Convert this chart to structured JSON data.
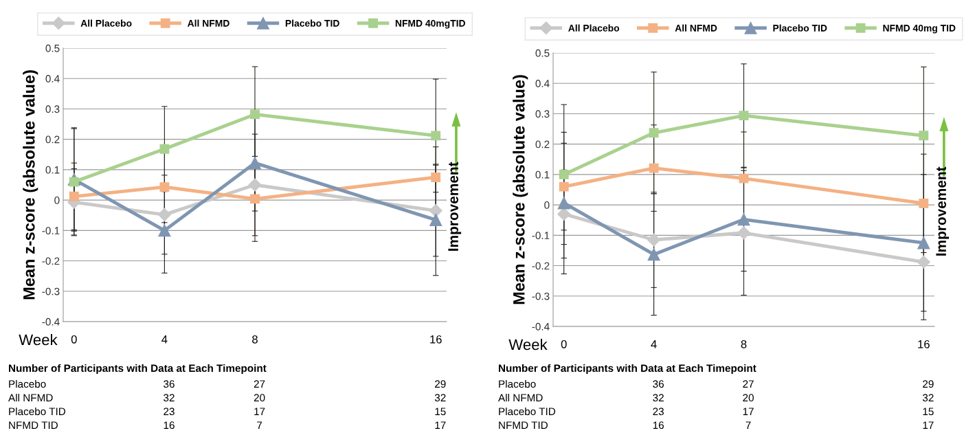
{
  "chart_data": [
    {
      "type": "line",
      "xlabel": "Week",
      "ylabel": "Mean z-score (absolute value)",
      "categories": [
        "0",
        "4",
        "8",
        null,
        "16"
      ],
      "ylim": [
        -0.4,
        0.5
      ],
      "yticks": [
        -0.4,
        -0.3,
        -0.2,
        -0.1,
        0,
        0.1,
        0.2,
        0.3,
        0.4,
        0.5
      ],
      "grid": "y",
      "legend": "top",
      "line_style": "solid",
      "series": [
        {
          "name": "All Placebo",
          "color": "#c9c9c9",
          "marker": "diamond",
          "values": [
            -0.007,
            -0.048,
            0.05,
            null,
            -0.035
          ],
          "errors": [
            0.11,
            0.13,
            0.167,
            null,
            0.15
          ]
        },
        {
          "name": "All NFMD",
          "color": "#f4b183",
          "marker": "square",
          "values": [
            0.012,
            0.043,
            0.004,
            null,
            0.075
          ],
          "errors": [
            0.11,
            0.117,
            0.14,
            null,
            0.1
          ]
        },
        {
          "name": "Placebo TID",
          "color": "#7f96b2",
          "marker": "triangle",
          "values": [
            0.068,
            -0.1,
            0.122,
            null,
            -0.065
          ],
          "errors": [
            0.17,
            0.14,
            0.158,
            null,
            0.183
          ]
        },
        {
          "name": "NFMD 40mgTID",
          "color": "#a9d18e",
          "marker": "square",
          "values": [
            0.06,
            0.168,
            0.282,
            null,
            0.212
          ],
          "errors": [
            0.175,
            0.14,
            0.157,
            null,
            0.186
          ]
        }
      ],
      "annotations": [
        "Improvement",
        "Number of Participants with Data at Each Timepoint",
        "Placebo",
        "36",
        "27",
        "29",
        "All NFMD",
        "32",
        "20",
        "32",
        "Placebo TID",
        "23",
        "17",
        "15",
        "NFMD TID",
        "16",
        "7",
        "17"
      ]
    },
    {
      "type": "line",
      "xlabel": "Week",
      "ylabel": "Mean z-score (absolute value)",
      "categories": [
        "0",
        "4",
        "8",
        null,
        "16"
      ],
      "ylim": [
        -0.4,
        0.5
      ],
      "yticks": [
        -0.4,
        -0.3,
        -0.2,
        -0.1,
        0,
        0.1,
        0.2,
        0.3,
        0.4,
        0.5
      ],
      "grid": "y",
      "legend": "top",
      "line_style": "solid",
      "series": [
        {
          "name": "All Placebo",
          "color": "#c9c9c9",
          "marker": "diamond",
          "values": [
            -0.03,
            -0.115,
            -0.092,
            null,
            -0.188
          ],
          "errors": [
            0.145,
            0.157,
            0.205,
            null,
            0.19
          ]
        },
        {
          "name": "All NFMD",
          "color": "#f4b183",
          "marker": "square",
          "values": [
            0.06,
            0.121,
            0.087,
            null,
            0.005
          ],
          "errors": [
            0.143,
            0.142,
            0.153,
            null,
            0.162
          ]
        },
        {
          "name": "Placebo TID",
          "color": "#7f96b2",
          "marker": "triangle",
          "values": [
            0.006,
            -0.163,
            -0.048,
            null,
            -0.125
          ],
          "errors": [
            0.233,
            0.2,
            0.17,
            null,
            0.225
          ]
        },
        {
          "name": "NFMD 40mg TID",
          "color": "#a9d18e",
          "marker": "square",
          "values": [
            0.1,
            0.237,
            0.294,
            null,
            0.228
          ],
          "errors": [
            0.23,
            0.2,
            0.17,
            null,
            0.226
          ]
        }
      ],
      "annotations": [
        "Improvement",
        "Number of Participants with Data at Each Timepoint",
        "Placebo",
        "36",
        "27",
        "29",
        "All NFMD",
        "32",
        "20",
        "32",
        "Placebo TID",
        "23",
        "17",
        "15",
        "NFMD TID",
        "16",
        "7",
        "17"
      ]
    }
  ]
}
